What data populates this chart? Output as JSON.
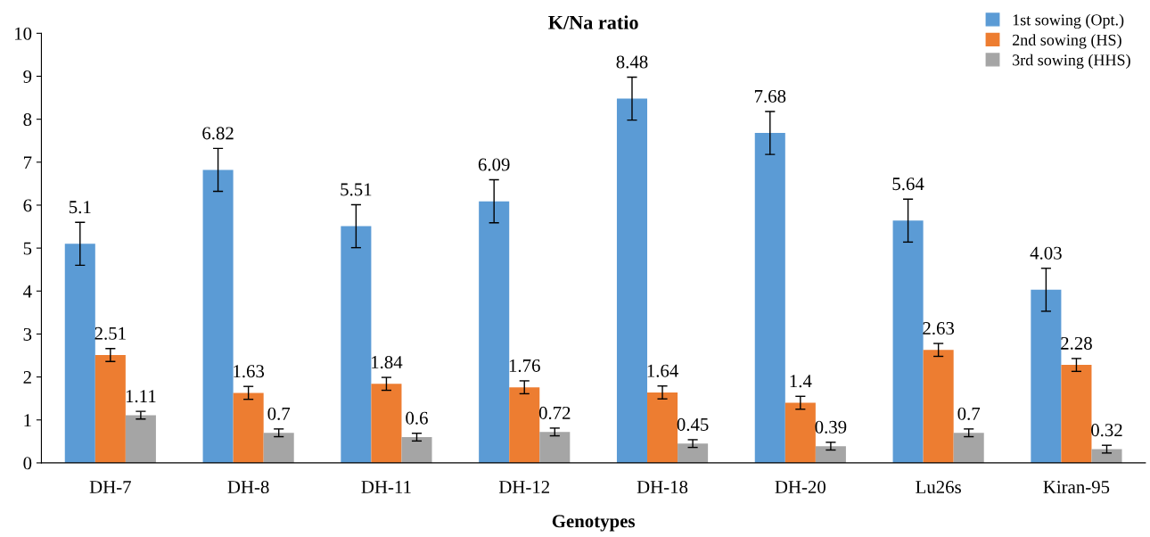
{
  "chart_data": {
    "type": "bar",
    "title": "K/Na ratio",
    "xlabel": "Genotypes",
    "categories": [
      "DH-7",
      "DH-8",
      "DH-11",
      "DH-12",
      "DH-18",
      "DH-20",
      "Lu26s",
      "Kiran-95"
    ],
    "series": [
      {
        "name": "1st sowing (Opt.)",
        "color": "#5b9bd5",
        "values": [
          5.1,
          6.82,
          5.51,
          6.09,
          8.48,
          7.68,
          5.64,
          4.03
        ],
        "errors": [
          0.5,
          0.5,
          0.5,
          0.5,
          0.5,
          0.5,
          0.5,
          0.5
        ]
      },
      {
        "name": "2nd sowing (HS)",
        "color": "#ed7d31",
        "values": [
          2.51,
          1.63,
          1.84,
          1.76,
          1.64,
          1.4,
          2.63,
          2.28
        ],
        "errors": [
          0.15,
          0.15,
          0.15,
          0.15,
          0.15,
          0.15,
          0.15,
          0.15
        ]
      },
      {
        "name": "3rd sowing (HHS)",
        "color": "#a5a5a5",
        "values": [
          1.11,
          0.7,
          0.6,
          0.72,
          0.45,
          0.39,
          0.7,
          0.32
        ],
        "errors": [
          0.09,
          0.09,
          0.09,
          0.09,
          0.09,
          0.09,
          0.09,
          0.09
        ]
      }
    ],
    "ylim": [
      0,
      10
    ],
    "yticks": [
      0,
      1,
      2,
      3,
      4,
      5,
      6,
      7,
      8,
      9,
      10
    ],
    "data_labels": true,
    "grid": false,
    "legend": "top right"
  }
}
